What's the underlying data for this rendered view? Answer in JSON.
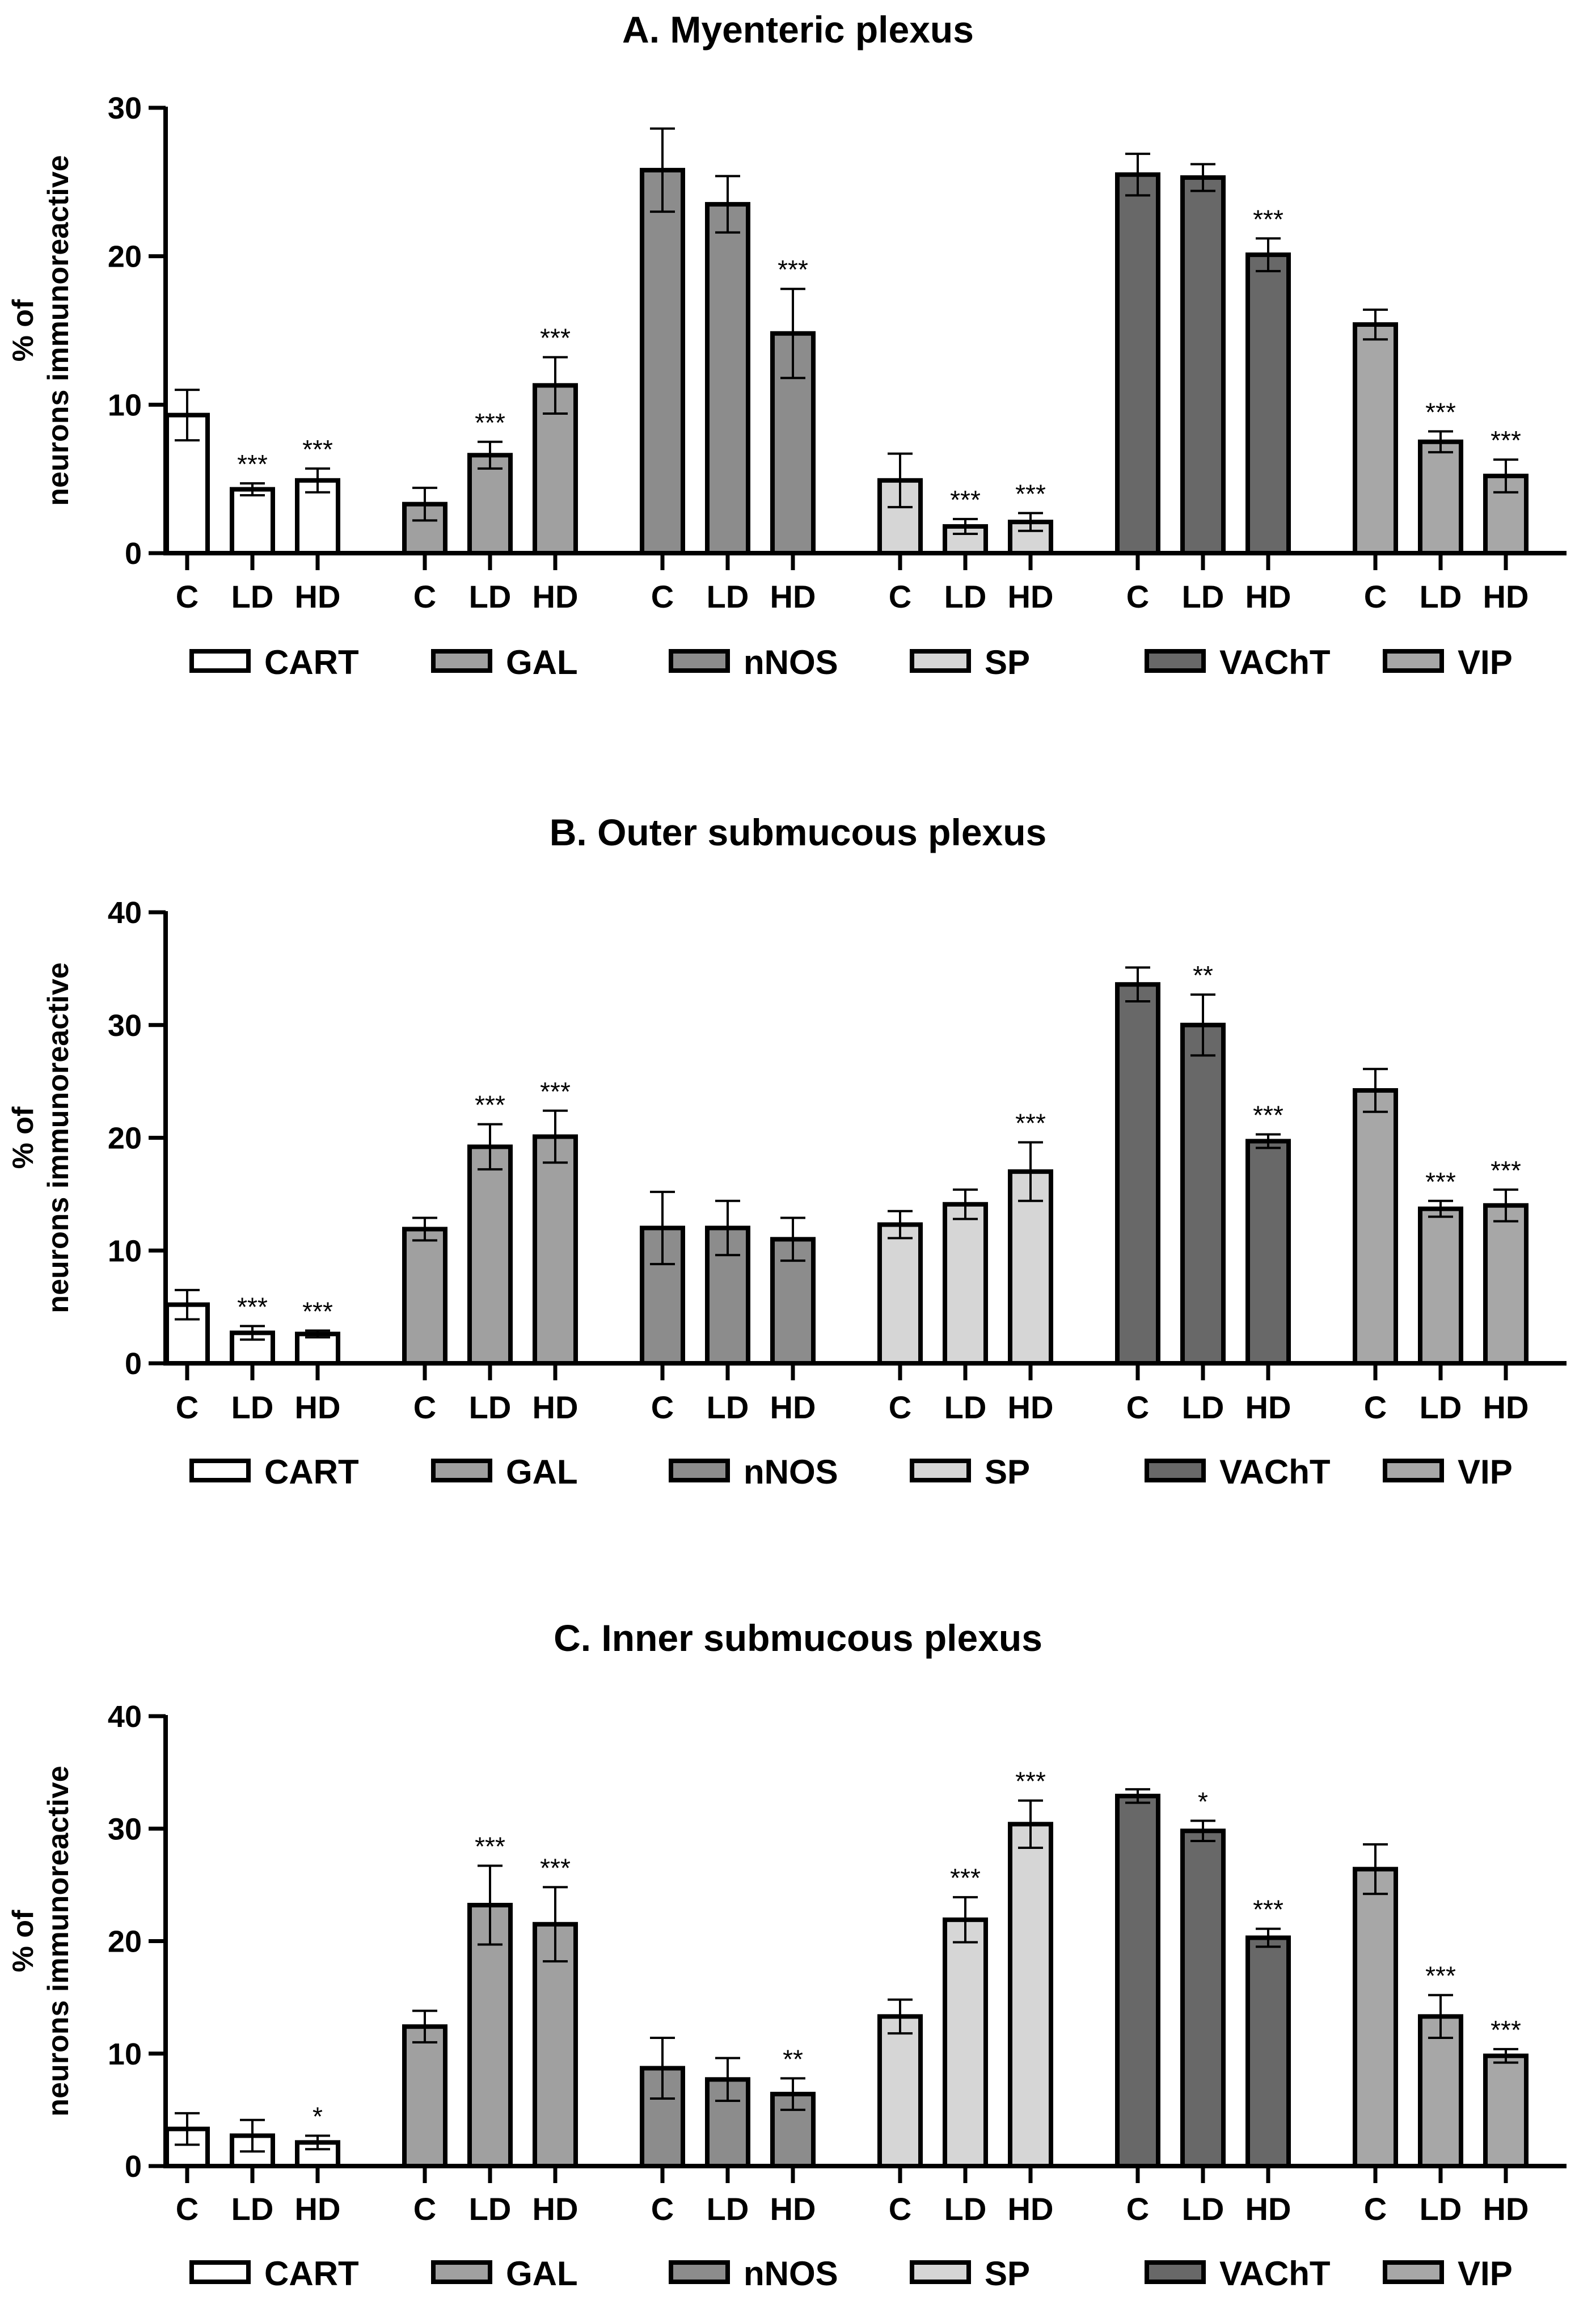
{
  "figure": {
    "group_labels": [
      "C",
      "LD",
      "HD"
    ],
    "markers": [
      "CART",
      "GAL",
      "nNOS",
      "SP",
      "VAChT",
      "VIP"
    ],
    "colors": {
      "CART": "#ffffff",
      "GAL": "#a0a0a0",
      "nNOS": "#8c8c8c",
      "SP": "#d6d6d6",
      "VAChT": "#686868",
      "VIP": "#a7a7a7",
      "axis": "#000000"
    }
  },
  "chart_data": [
    {
      "type": "bar",
      "title": "A. Myenteric plexus",
      "ylabel_line1": "% of",
      "ylabel_line2": "neurons immunoreactive",
      "xlabel": "",
      "ylim": [
        0,
        30
      ],
      "yticks": [
        0,
        10,
        20,
        30
      ],
      "legend_position": "bottom",
      "categories": [
        "C",
        "LD",
        "HD"
      ],
      "series": [
        {
          "name": "CART",
          "values": [
            9.3,
            4.3,
            4.9
          ],
          "errors": [
            1.7,
            0.4,
            0.8
          ],
          "sig": [
            "",
            "***",
            "***"
          ]
        },
        {
          "name": "GAL",
          "values": [
            3.3,
            6.6,
            11.3
          ],
          "errors": [
            1.1,
            0.9,
            1.9
          ],
          "sig": [
            "",
            "***",
            "***"
          ]
        },
        {
          "name": "nNOS",
          "values": [
            25.8,
            23.5,
            14.8
          ],
          "errors": [
            2.8,
            1.9,
            3.0
          ],
          "sig": [
            "",
            "",
            "***"
          ]
        },
        {
          "name": "SP",
          "values": [
            4.9,
            1.8,
            2.1
          ],
          "errors": [
            1.8,
            0.5,
            0.6
          ],
          "sig": [
            "",
            "***",
            "***"
          ]
        },
        {
          "name": "VAChT",
          "values": [
            25.5,
            25.3,
            20.1
          ],
          "errors": [
            1.4,
            0.9,
            1.1
          ],
          "sig": [
            "",
            "",
            "***"
          ]
        },
        {
          "name": "VIP",
          "values": [
            15.4,
            7.5,
            5.2
          ],
          "errors": [
            1.0,
            0.7,
            1.1
          ],
          "sig": [
            "",
            "***",
            "***"
          ]
        }
      ]
    },
    {
      "type": "bar",
      "title": "B. Outer submucous plexus",
      "ylabel_line1": "% of",
      "ylabel_line2": "neurons immunoreactive",
      "xlabel": "",
      "ylim": [
        0,
        40
      ],
      "yticks": [
        0,
        10,
        20,
        30,
        40
      ],
      "legend_position": "bottom",
      "categories": [
        "C",
        "LD",
        "HD"
      ],
      "series": [
        {
          "name": "CART",
          "values": [
            5.2,
            2.7,
            2.6
          ],
          "errors": [
            1.3,
            0.6,
            0.3
          ],
          "sig": [
            "",
            "***",
            "***"
          ]
        },
        {
          "name": "GAL",
          "values": [
            11.9,
            19.2,
            20.1
          ],
          "errors": [
            1.0,
            2.0,
            2.3
          ],
          "sig": [
            "",
            "***",
            "***"
          ]
        },
        {
          "name": "nNOS",
          "values": [
            12.0,
            12.0,
            11.0
          ],
          "errors": [
            3.2,
            2.4,
            1.9
          ],
          "sig": [
            "",
            "",
            ""
          ]
        },
        {
          "name": "SP",
          "values": [
            12.3,
            14.1,
            17.0
          ],
          "errors": [
            1.2,
            1.3,
            2.6
          ],
          "sig": [
            "",
            "",
            "***"
          ]
        },
        {
          "name": "VAChT",
          "values": [
            33.6,
            30.0,
            19.7
          ],
          "errors": [
            1.5,
            2.7,
            0.6
          ],
          "sig": [
            "",
            "**",
            "***"
          ]
        },
        {
          "name": "VIP",
          "values": [
            24.2,
            13.7,
            14.0
          ],
          "errors": [
            1.9,
            0.7,
            1.4
          ],
          "sig": [
            "",
            "***",
            "***"
          ]
        }
      ]
    },
    {
      "type": "bar",
      "title": "C. Inner submucous plexus",
      "ylabel_line1": "% of",
      "ylabel_line2": "neurons immunoreactive",
      "xlabel": "",
      "ylim": [
        0,
        40
      ],
      "yticks": [
        0,
        10,
        20,
        30,
        40
      ],
      "legend_position": "bottom",
      "categories": [
        "C",
        "LD",
        "HD"
      ],
      "series": [
        {
          "name": "CART",
          "values": [
            3.3,
            2.7,
            2.1
          ],
          "errors": [
            1.4,
            1.4,
            0.6
          ],
          "sig": [
            "",
            "",
            "*"
          ]
        },
        {
          "name": "GAL",
          "values": [
            12.4,
            23.2,
            21.5
          ],
          "errors": [
            1.4,
            3.5,
            3.3
          ],
          "sig": [
            "",
            "***",
            "***"
          ]
        },
        {
          "name": "nNOS",
          "values": [
            8.7,
            7.7,
            6.4
          ],
          "errors": [
            2.7,
            1.9,
            1.4
          ],
          "sig": [
            "",
            "",
            "**"
          ]
        },
        {
          "name": "SP",
          "values": [
            13.3,
            21.9,
            30.4
          ],
          "errors": [
            1.5,
            2.0,
            2.1
          ],
          "sig": [
            "",
            "***",
            "***"
          ]
        },
        {
          "name": "VAChT",
          "values": [
            32.9,
            29.8,
            20.3
          ],
          "errors": [
            0.6,
            0.9,
            0.8
          ],
          "sig": [
            "",
            "*",
            "***"
          ]
        },
        {
          "name": "VIP",
          "values": [
            26.4,
            13.3,
            9.8
          ],
          "errors": [
            2.2,
            1.9,
            0.6
          ],
          "sig": [
            "",
            "***",
            "***"
          ]
        }
      ]
    }
  ]
}
